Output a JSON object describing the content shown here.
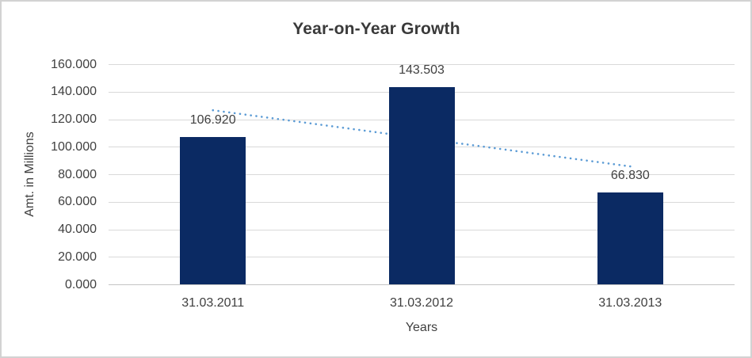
{
  "chart_data": {
    "type": "bar",
    "title": "Year-on-Year Growth",
    "xlabel": "Years",
    "ylabel": "Amt. in Millions",
    "categories": [
      "31.03.2011",
      "31.03.2012",
      "31.03.2013"
    ],
    "values": [
      106.92,
      143.503,
      66.83
    ],
    "data_labels": [
      "106.920",
      "143.503",
      "66.830"
    ],
    "y_tick_labels": [
      "0.000",
      "20.000",
      "40.000",
      "60.000",
      "80.000",
      "100.000",
      "120.000",
      "140.000",
      "160.000"
    ],
    "ylim": [
      0,
      160
    ],
    "y_tick_step": 20,
    "grid": true,
    "legend": "none",
    "trendline": {
      "style": "dotted",
      "start_value": 126.5,
      "end_value": 85.7,
      "color": "#5b9bd5"
    },
    "colors": {
      "bar": "#0b2a63",
      "gridline": "#d9d9d9",
      "axis_line": "#c4c4c4",
      "text": "#404040",
      "title": "#3a3a3a",
      "border": "#d2d2d2",
      "background": "#ffffff"
    }
  }
}
